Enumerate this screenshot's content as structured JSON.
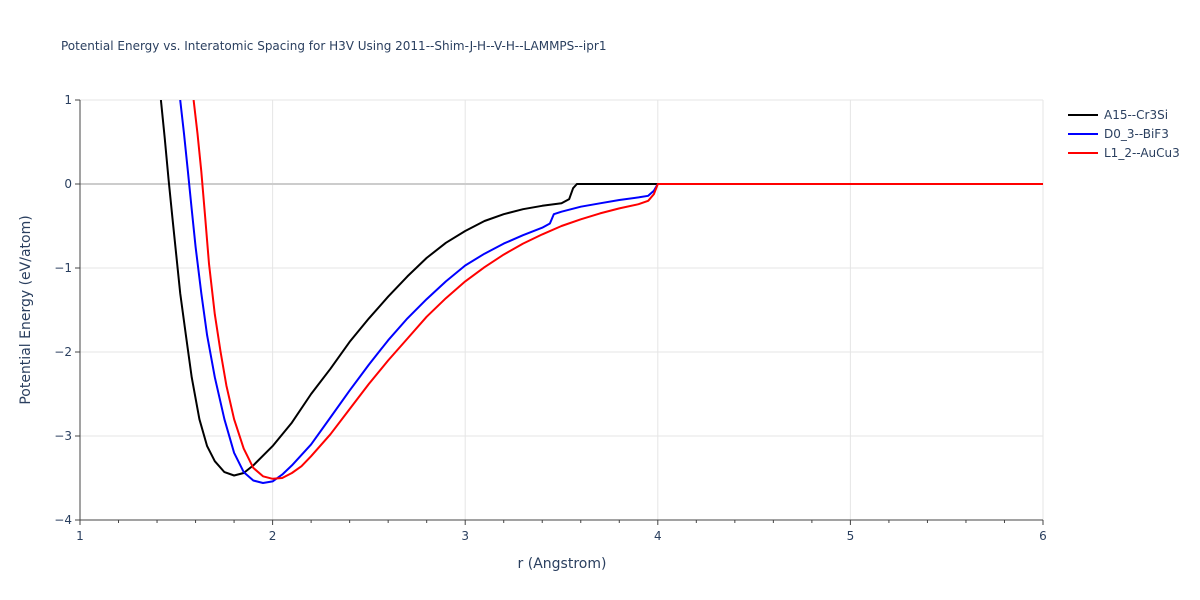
{
  "chart_data": {
    "type": "line",
    "title": "Potential Energy vs. Interatomic Spacing for H3V Using 2011--Shim-J-H--V-H--LAMMPS--ipr1",
    "xlabel": "r (Angstrom)",
    "ylabel": "Potential Energy (eV/atom)",
    "xlim": [
      1,
      6
    ],
    "ylim": [
      -4,
      1
    ],
    "xticks": [
      1,
      2,
      3,
      4,
      5,
      6
    ],
    "yticks": [
      1,
      0,
      -1,
      -2,
      -3,
      -4
    ],
    "xtick_labels": [
      "1",
      "2",
      "3",
      "4",
      "5",
      "6"
    ],
    "ytick_labels": [
      "1",
      "0",
      "−1",
      "−2",
      "−3",
      "−4"
    ],
    "grid": true,
    "legend_position": "top-right, outside plot",
    "series": [
      {
        "name": "A15--Cr3Si",
        "color": "#000000",
        "x": [
          1.42,
          1.44,
          1.46,
          1.48,
          1.5,
          1.52,
          1.55,
          1.58,
          1.62,
          1.66,
          1.7,
          1.75,
          1.8,
          1.85,
          1.9,
          2.0,
          2.1,
          2.2,
          2.3,
          2.4,
          2.5,
          2.6,
          2.7,
          2.8,
          2.9,
          3.0,
          3.1,
          3.2,
          3.3,
          3.4,
          3.5,
          3.54,
          3.56,
          3.58,
          3.7,
          3.85,
          4.0,
          4.5,
          5.0,
          5.5,
          6.0
        ],
        "y": [
          1.0,
          0.55,
          0.05,
          -0.4,
          -0.85,
          -1.3,
          -1.8,
          -2.3,
          -2.8,
          -3.12,
          -3.3,
          -3.43,
          -3.47,
          -3.44,
          -3.35,
          -3.12,
          -2.84,
          -2.5,
          -2.2,
          -1.88,
          -1.6,
          -1.34,
          -1.1,
          -0.88,
          -0.7,
          -0.56,
          -0.44,
          -0.36,
          -0.3,
          -0.26,
          -0.23,
          -0.18,
          -0.05,
          0.0,
          0.0,
          0.0,
          0.0,
          0.0,
          0.0,
          0.0,
          0.0
        ]
      },
      {
        "name": "D0_3--BiF3",
        "color": "#0000ff",
        "x": [
          1.52,
          1.54,
          1.56,
          1.58,
          1.6,
          1.63,
          1.66,
          1.7,
          1.75,
          1.8,
          1.85,
          1.9,
          1.95,
          2.0,
          2.05,
          2.1,
          2.2,
          2.3,
          2.4,
          2.5,
          2.6,
          2.7,
          2.8,
          2.9,
          3.0,
          3.1,
          3.2,
          3.3,
          3.4,
          3.44,
          3.46,
          3.5,
          3.6,
          3.7,
          3.8,
          3.9,
          3.95,
          3.98,
          4.0,
          4.5,
          5.0,
          5.5,
          6.0
        ],
        "y": [
          1.0,
          0.6,
          0.15,
          -0.3,
          -0.75,
          -1.3,
          -1.8,
          -2.3,
          -2.8,
          -3.2,
          -3.43,
          -3.53,
          -3.56,
          -3.54,
          -3.46,
          -3.35,
          -3.1,
          -2.78,
          -2.46,
          -2.15,
          -1.86,
          -1.6,
          -1.37,
          -1.16,
          -0.97,
          -0.83,
          -0.71,
          -0.61,
          -0.52,
          -0.47,
          -0.36,
          -0.33,
          -0.27,
          -0.23,
          -0.19,
          -0.16,
          -0.14,
          -0.08,
          0.0,
          0.0,
          0.0,
          0.0,
          0.0
        ]
      },
      {
        "name": "L1_2--AuCu3",
        "color": "#ff0000",
        "x": [
          1.59,
          1.61,
          1.63,
          1.65,
          1.67,
          1.7,
          1.73,
          1.76,
          1.8,
          1.85,
          1.9,
          1.95,
          2.0,
          2.05,
          2.1,
          2.15,
          2.2,
          2.3,
          2.4,
          2.5,
          2.6,
          2.7,
          2.8,
          2.9,
          3.0,
          3.1,
          3.2,
          3.3,
          3.4,
          3.5,
          3.6,
          3.7,
          3.8,
          3.9,
          3.95,
          3.98,
          4.0,
          4.5,
          5.0,
          5.5,
          6.0
        ],
        "y": [
          1.0,
          0.6,
          0.15,
          -0.4,
          -0.95,
          -1.55,
          -2.0,
          -2.4,
          -2.8,
          -3.15,
          -3.38,
          -3.48,
          -3.51,
          -3.5,
          -3.44,
          -3.36,
          -3.24,
          -2.98,
          -2.68,
          -2.38,
          -2.1,
          -1.84,
          -1.58,
          -1.36,
          -1.16,
          -0.99,
          -0.84,
          -0.71,
          -0.6,
          -0.5,
          -0.42,
          -0.35,
          -0.29,
          -0.24,
          -0.2,
          -0.12,
          0.0,
          0.0,
          0.0,
          0.0,
          0.0
        ]
      }
    ]
  }
}
